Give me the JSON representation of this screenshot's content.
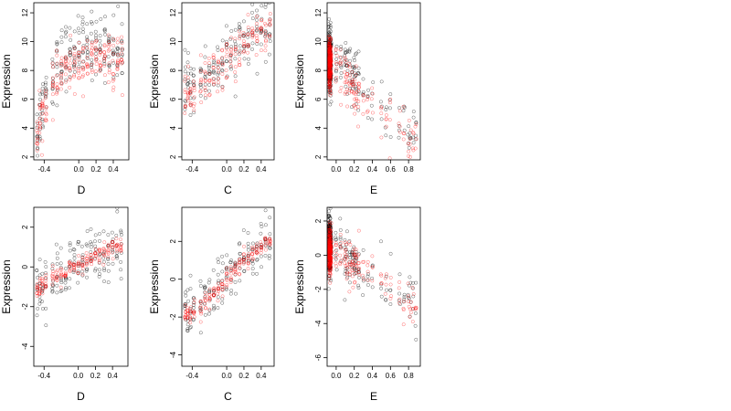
{
  "colors": {
    "series_black": "#000000",
    "series_red": "#ff0000",
    "axis": "#000000"
  },
  "chart_data": [
    {
      "type": "scatter",
      "panel": "top-1",
      "xlabel": "D",
      "ylabel": "Expression",
      "xlim": [
        -0.52,
        0.58
      ],
      "ylim": [
        1.8,
        12.7
      ],
      "xticks": [
        -0.4,
        0.0,
        0.2,
        0.4
      ],
      "xtick_labels": [
        "-0.4",
        "0.0",
        "0.2",
        "0.4"
      ],
      "yticks": [
        2,
        4,
        6,
        8,
        10,
        12
      ],
      "ytick_labels": [
        "2",
        "4",
        "6",
        "8",
        "10",
        "12"
      ],
      "grid": false,
      "legend": "none",
      "series": [
        {
          "color": "black",
          "trend": {
            "x": [
              -0.5,
              -0.4,
              -0.2,
              0.0,
              0.2,
              0.4,
              0.55
            ],
            "y": [
              3.0,
              6.5,
              8.8,
              9.5,
              9.8,
              9.5,
              9.0
            ]
          }
        },
        {
          "color": "red",
          "trend": {
            "x": [
              -0.5,
              -0.4,
              -0.2,
              0.0,
              0.2,
              0.4,
              0.55
            ],
            "y": [
              3.5,
              5.5,
              7.8,
              8.5,
              8.8,
              8.6,
              8.3
            ]
          }
        }
      ]
    },
    {
      "type": "scatter",
      "panel": "top-2",
      "xlabel": "C",
      "ylabel": "Expression",
      "xlim": [
        -0.52,
        0.55
      ],
      "ylim": [
        1.8,
        12.7
      ],
      "xticks": [
        -0.4,
        0.0,
        0.2,
        0.4
      ],
      "xtick_labels": [
        "-0.4",
        "0.0",
        "0.2",
        "0.4"
      ],
      "yticks": [
        2,
        4,
        6,
        8,
        10,
        12
      ],
      "ytick_labels": [
        "2",
        "4",
        "6",
        "8",
        "10",
        "12"
      ],
      "grid": false,
      "legend": "none",
      "series": [
        {
          "color": "black",
          "trend": {
            "x": [
              -0.45,
              -0.2,
              0.0,
              0.2,
              0.45
            ],
            "y": [
              6.8,
              7.8,
              8.8,
              9.8,
              11.2
            ]
          }
        },
        {
          "color": "red",
          "trend": {
            "x": [
              -0.45,
              -0.2,
              0.0,
              0.2,
              0.45
            ],
            "y": [
              6.3,
              7.5,
              8.6,
              9.8,
              11.0
            ]
          }
        }
      ]
    },
    {
      "type": "scatter",
      "panel": "top-3",
      "xlabel": "E",
      "ylabel": "Expression",
      "xlim": [
        -0.1,
        0.93
      ],
      "ylim": [
        1.8,
        12.7
      ],
      "xticks": [
        0.0,
        0.2,
        0.4,
        0.6,
        0.8
      ],
      "xtick_labels": [
        "0.0",
        "0.2",
        "0.4",
        "0.6",
        "0.8"
      ],
      "yticks": [
        2,
        4,
        6,
        8,
        10,
        12
      ],
      "ytick_labels": [
        "2",
        "4",
        "6",
        "8",
        "10",
        "12"
      ],
      "grid": false,
      "legend": "none",
      "series": [
        {
          "color": "black",
          "trend": {
            "x": [
              -0.08,
              0.1,
              0.3,
              0.5,
              0.7,
              0.88
            ],
            "y": [
              8.8,
              8.0,
              6.5,
              5.5,
              4.5,
              3.5
            ]
          }
        },
        {
          "color": "red",
          "trend": {
            "x": [
              -0.08,
              0.1,
              0.3,
              0.5,
              0.7,
              0.88
            ],
            "y": [
              8.5,
              7.5,
              6.0,
              5.0,
              4.2,
              3.5
            ]
          }
        }
      ]
    },
    {
      "type": "scatter",
      "panel": "bottom-1",
      "xlabel": "D",
      "ylabel": "Expression",
      "xlim": [
        -0.52,
        0.58
      ],
      "ylim": [
        -5.0,
        3.0
      ],
      "xticks": [
        -0.4,
        0.0,
        0.2,
        0.4
      ],
      "xtick_labels": [
        "-0.4",
        "0.0",
        "0.2",
        "0.4"
      ],
      "yticks": [
        -4,
        -2,
        0,
        2
      ],
      "ytick_labels": [
        "-4",
        "-2",
        "0",
        "2"
      ],
      "grid": false,
      "legend": "none",
      "series": [
        {
          "color": "black",
          "trend": {
            "x": [
              -0.45,
              -0.2,
              0.0,
              0.2,
              0.45
            ],
            "y": [
              -1.0,
              -0.4,
              0.1,
              0.6,
              1.1
            ]
          }
        },
        {
          "color": "red",
          "trend": {
            "x": [
              -0.45,
              -0.2,
              0.0,
              0.2,
              0.45
            ],
            "y": [
              -1.0,
              -0.4,
              0.0,
              0.5,
              1.1
            ]
          }
        }
      ]
    },
    {
      "type": "scatter",
      "panel": "bottom-2",
      "xlabel": "C",
      "ylabel": "Expression",
      "xlim": [
        -0.52,
        0.55
      ],
      "ylim": [
        -4.6,
        3.8
      ],
      "xticks": [
        -0.4,
        0.0,
        0.2,
        0.4
      ],
      "xtick_labels": [
        "-0.4",
        "0.0",
        "0.2",
        "0.4"
      ],
      "yticks": [
        -4,
        -2,
        0,
        2
      ],
      "ytick_labels": [
        "-4",
        "-2",
        "0",
        "2"
      ],
      "grid": false,
      "legend": "none",
      "series": [
        {
          "color": "black",
          "trend": {
            "x": [
              -0.45,
              -0.2,
              0.0,
              0.2,
              0.45
            ],
            "y": [
              -1.8,
              -0.9,
              0.1,
              1.0,
              2.0
            ]
          }
        },
        {
          "color": "red",
          "trend": {
            "x": [
              -0.45,
              -0.2,
              0.0,
              0.2,
              0.45
            ],
            "y": [
              -2.0,
              -1.1,
              -0.1,
              0.9,
              2.0
            ]
          }
        }
      ]
    },
    {
      "type": "scatter",
      "panel": "bottom-3",
      "xlabel": "E",
      "ylabel": "Expression",
      "xlim": [
        -0.1,
        0.93
      ],
      "ylim": [
        -6.5,
        2.8
      ],
      "xticks": [
        0.0,
        0.2,
        0.4,
        0.6,
        0.8
      ],
      "xtick_labels": [
        "0.0",
        "0.2",
        "0.4",
        "0.6",
        "0.8"
      ],
      "yticks": [
        -6,
        -4,
        -2,
        0,
        2
      ],
      "ytick_labels": [
        "-6",
        "-4",
        "-2",
        "0",
        "2"
      ],
      "grid": false,
      "legend": "none",
      "series": [
        {
          "color": "black",
          "trend": {
            "x": [
              -0.08,
              0.1,
              0.3,
              0.5,
              0.7,
              0.88
            ],
            "y": [
              0.8,
              0.2,
              -0.8,
              -1.5,
              -2.3,
              -3.0
            ]
          }
        },
        {
          "color": "red",
          "trend": {
            "x": [
              -0.08,
              0.1,
              0.3,
              0.5,
              0.7,
              0.88
            ],
            "y": [
              0.3,
              -0.2,
              -1.0,
              -1.6,
              -2.3,
              -3.0
            ]
          }
        }
      ]
    }
  ]
}
